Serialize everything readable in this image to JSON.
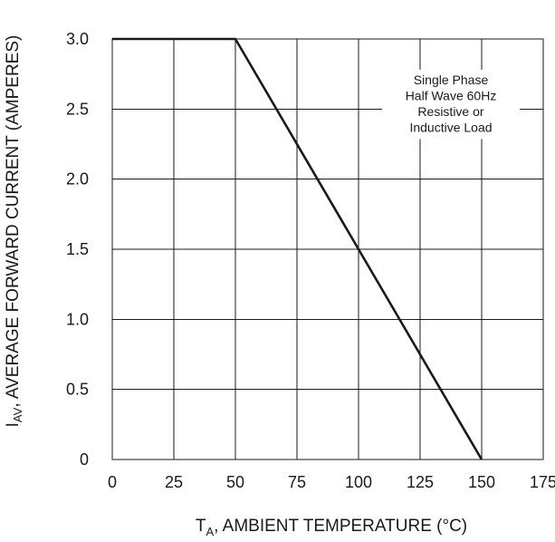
{
  "chart_data": {
    "type": "line",
    "xlabel": {
      "main": "T",
      "sub": "A",
      "rest": ", AMBIENT TEMPERATURE (°C)"
    },
    "ylabel": {
      "main": "I",
      "sub": "AV",
      "rest": ", AVERAGE FORWARD CURRENT (AMPERES)"
    },
    "xlim": [
      0,
      175
    ],
    "ylim": [
      0,
      3.0
    ],
    "x_ticks": [
      0,
      25,
      50,
      75,
      100,
      125,
      150,
      175
    ],
    "x_tick_labels": [
      "0",
      "25",
      "50",
      "75",
      "100",
      "125",
      "150",
      "175"
    ],
    "y_ticks": [
      0,
      0.5,
      1.0,
      1.5,
      2.0,
      2.5,
      3.0
    ],
    "y_tick_labels": [
      "0",
      "0.5",
      "1.0",
      "1.5",
      "2.0",
      "2.5",
      "3.0"
    ],
    "grid": true,
    "series": [
      {
        "x": [
          0,
          50,
          150
        ],
        "y": [
          3.0,
          3.0,
          0
        ]
      }
    ],
    "annotation": {
      "lines": [
        "Single Phase",
        "Half Wave 60Hz",
        "Resistive or",
        "Inductive Load"
      ],
      "x": 137.5,
      "y": 2.6
    }
  }
}
